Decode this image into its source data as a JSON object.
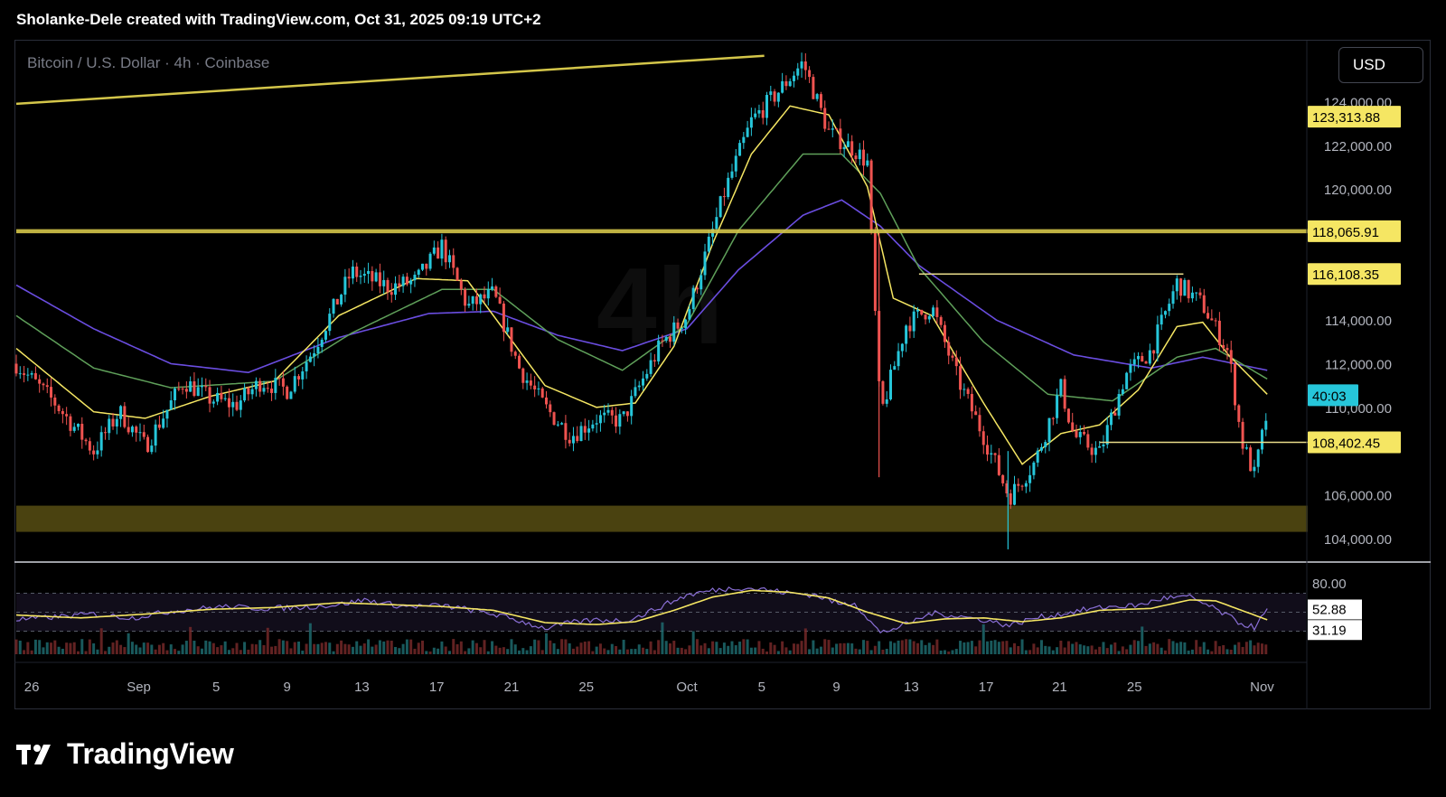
{
  "header": {
    "caption": "Sholanke-Dele created with TradingView.com, Oct 31, 2025 09:19 UTC+2"
  },
  "chart": {
    "symbol_title": "Bitcoin / U.S. Dollar · 4h · Coinbase",
    "currency_label": "USD",
    "watermark": "4h"
  },
  "brand": {
    "name": "TradingView"
  },
  "colors": {
    "background": "#000000",
    "up_candle": "#26c6da",
    "down_candle": "#ef5350",
    "ema_fast": "#f5e663",
    "ema_mid": "#5fa05a",
    "ema_slow": "#6a4de0",
    "level_line": "#d4c64a",
    "zone_fill": "#4a4210",
    "rsi_line": "#8a6fd6",
    "rsi_ma": "#f5e663",
    "price_label_bg": "#f5e663",
    "countdown_bg": "#26c6da"
  },
  "chart_data": {
    "type": "candlestick",
    "title": "Bitcoin / U.S. Dollar · 4h · Coinbase",
    "currency": "USD",
    "x_tick_labels": [
      "26",
      "Sep",
      "5",
      "9",
      "13",
      "17",
      "21",
      "25",
      "Oct",
      "5",
      "9",
      "13",
      "17",
      "21",
      "25",
      "Nov"
    ],
    "y_tick_labels": [
      "124,000.00",
      "122,000.00",
      "120,000.00",
      "114,000.00",
      "112,000.00",
      "110,000.00",
      "106,000.00",
      "104,000.00"
    ],
    "y_range": [
      103000,
      127000
    ],
    "price_path": [
      [
        0,
        112000
      ],
      [
        3,
        110200
      ],
      [
        6,
        108000
      ],
      [
        8,
        109800
      ],
      [
        10,
        108200
      ],
      [
        13,
        111200
      ],
      [
        15,
        110400
      ],
      [
        17,
        110100
      ],
      [
        19,
        111200
      ],
      [
        21,
        110800
      ],
      [
        23,
        112600
      ],
      [
        26,
        116200
      ],
      [
        29,
        115500
      ],
      [
        31,
        115800
      ],
      [
        33,
        117400
      ],
      [
        35,
        114600
      ],
      [
        37,
        115200
      ],
      [
        39,
        111800
      ],
      [
        41,
        110000
      ],
      [
        43,
        108700
      ],
      [
        45,
        109500
      ],
      [
        47,
        109400
      ],
      [
        48,
        110600
      ],
      [
        50,
        112900
      ],
      [
        52,
        114200
      ],
      [
        55,
        120000
      ],
      [
        57,
        123100
      ],
      [
        59,
        124400
      ],
      [
        61,
        125800
      ],
      [
        63,
        122600
      ],
      [
        65,
        121800
      ],
      [
        66,
        121200
      ],
      [
        67,
        109600
      ],
      [
        69,
        113800
      ],
      [
        71,
        114600
      ],
      [
        73,
        111300
      ],
      [
        75,
        108700
      ],
      [
        77,
        105900
      ],
      [
        79,
        107500
      ],
      [
        81,
        110900
      ],
      [
        82,
        108700
      ],
      [
        84,
        107900
      ],
      [
        86,
        111500
      ],
      [
        88,
        112600
      ],
      [
        90,
        115700
      ],
      [
        92,
        114700
      ],
      [
        94,
        112500
      ],
      [
        95,
        108500
      ],
      [
        96,
        106900
      ],
      [
        97,
        109800
      ]
    ],
    "ema_fast": [
      [
        0,
        112700
      ],
      [
        6,
        109800
      ],
      [
        10,
        109500
      ],
      [
        15,
        110500
      ],
      [
        20,
        111200
      ],
      [
        25,
        114200
      ],
      [
        31,
        115900
      ],
      [
        35,
        115800
      ],
      [
        38,
        113400
      ],
      [
        41,
        111000
      ],
      [
        45,
        110000
      ],
      [
        48,
        110200
      ],
      [
        51,
        112800
      ],
      [
        54,
        117500
      ],
      [
        57,
        121600
      ],
      [
        60,
        123800
      ],
      [
        63,
        123400
      ],
      [
        66,
        120100
      ],
      [
        68,
        115000
      ],
      [
        71,
        114200
      ],
      [
        75,
        110200
      ],
      [
        78,
        107400
      ],
      [
        81,
        108800
      ],
      [
        84,
        109200
      ],
      [
        87,
        110800
      ],
      [
        90,
        113700
      ],
      [
        92,
        113900
      ],
      [
        94,
        112400
      ],
      [
        97,
        110600
      ]
    ],
    "ema_mid": [
      [
        0,
        114200
      ],
      [
        6,
        111800
      ],
      [
        12,
        110900
      ],
      [
        20,
        111200
      ],
      [
        26,
        113400
      ],
      [
        33,
        115400
      ],
      [
        37,
        115400
      ],
      [
        42,
        113100
      ],
      [
        47,
        111700
      ],
      [
        52,
        113800
      ],
      [
        56,
        118100
      ],
      [
        61,
        121600
      ],
      [
        64,
        121600
      ],
      [
        67,
        119800
      ],
      [
        70,
        116400
      ],
      [
        75,
        113000
      ],
      [
        80,
        110600
      ],
      [
        85,
        110300
      ],
      [
        90,
        112300
      ],
      [
        93,
        112700
      ],
      [
        97,
        111300
      ]
    ],
    "ema_slow": [
      [
        0,
        115600
      ],
      [
        6,
        113600
      ],
      [
        12,
        112000
      ],
      [
        18,
        111600
      ],
      [
        25,
        113200
      ],
      [
        32,
        114300
      ],
      [
        37,
        114400
      ],
      [
        42,
        113300
      ],
      [
        47,
        112600
      ],
      [
        52,
        113600
      ],
      [
        56,
        116300
      ],
      [
        61,
        118800
      ],
      [
        64,
        119500
      ],
      [
        67,
        118300
      ],
      [
        70,
        116500
      ],
      [
        76,
        114000
      ],
      [
        82,
        112400
      ],
      [
        88,
        111800
      ],
      [
        92,
        112300
      ],
      [
        97,
        111700
      ]
    ],
    "rsi": [
      [
        0,
        42
      ],
      [
        3,
        45
      ],
      [
        6,
        48
      ],
      [
        9,
        44
      ],
      [
        12,
        51
      ],
      [
        16,
        56
      ],
      [
        19,
        54
      ],
      [
        22,
        55
      ],
      [
        25,
        58
      ],
      [
        27,
        63
      ],
      [
        30,
        56
      ],
      [
        33,
        57
      ],
      [
        35,
        53
      ],
      [
        37,
        48
      ],
      [
        39,
        41
      ],
      [
        41,
        33
      ],
      [
        43,
        39
      ],
      [
        45,
        42
      ],
      [
        47,
        41
      ],
      [
        48,
        44
      ],
      [
        50,
        56
      ],
      [
        52,
        68
      ],
      [
        54,
        73
      ],
      [
        56,
        76
      ],
      [
        58,
        74
      ],
      [
        60,
        70
      ],
      [
        62,
        68
      ],
      [
        64,
        58
      ],
      [
        65,
        60
      ],
      [
        66,
        44
      ],
      [
        67,
        28
      ],
      [
        69,
        37
      ],
      [
        71,
        49
      ],
      [
        73,
        46
      ],
      [
        75,
        42
      ],
      [
        77,
        36
      ],
      [
        79,
        44
      ],
      [
        81,
        48
      ],
      [
        83,
        53
      ],
      [
        85,
        56
      ],
      [
        87,
        57
      ],
      [
        89,
        65
      ],
      [
        91,
        66
      ],
      [
        93,
        53
      ],
      [
        95,
        38
      ],
      [
        96,
        34
      ],
      [
        97,
        52
      ]
    ],
    "rsi_ma": [
      [
        0,
        47
      ],
      [
        5,
        44
      ],
      [
        10,
        48
      ],
      [
        15,
        53
      ],
      [
        20,
        55
      ],
      [
        25,
        60
      ],
      [
        29,
        58
      ],
      [
        33,
        56
      ],
      [
        37,
        52
      ],
      [
        41,
        39
      ],
      [
        45,
        37
      ],
      [
        48,
        40
      ],
      [
        51,
        52
      ],
      [
        54,
        66
      ],
      [
        57,
        73
      ],
      [
        60,
        71
      ],
      [
        63,
        65
      ],
      [
        66,
        50
      ],
      [
        69,
        38
      ],
      [
        72,
        43
      ],
      [
        75,
        44
      ],
      [
        78,
        40
      ],
      [
        81,
        44
      ],
      [
        84,
        52
      ],
      [
        88,
        54
      ],
      [
        91,
        63
      ],
      [
        93,
        62
      ],
      [
        96,
        47
      ],
      [
        97,
        42
      ]
    ],
    "rsi_axis_labels": [
      "80.00",
      "52.88",
      "31.19"
    ],
    "horizontal_levels": [
      {
        "label": "123,313.88",
        "value": 123313.88
      },
      {
        "label": "118,065.91",
        "value": 118065.91
      },
      {
        "label": "116,108.35",
        "value": 116108.35
      },
      {
        "label": "108,402.45",
        "value": 108402.45
      }
    ],
    "support_zone": [
      104300,
      105500
    ],
    "trendline": {
      "from": [
        0,
        123900
      ],
      "to": [
        58,
        126100
      ]
    },
    "last_candle_countdown": "40:03"
  }
}
